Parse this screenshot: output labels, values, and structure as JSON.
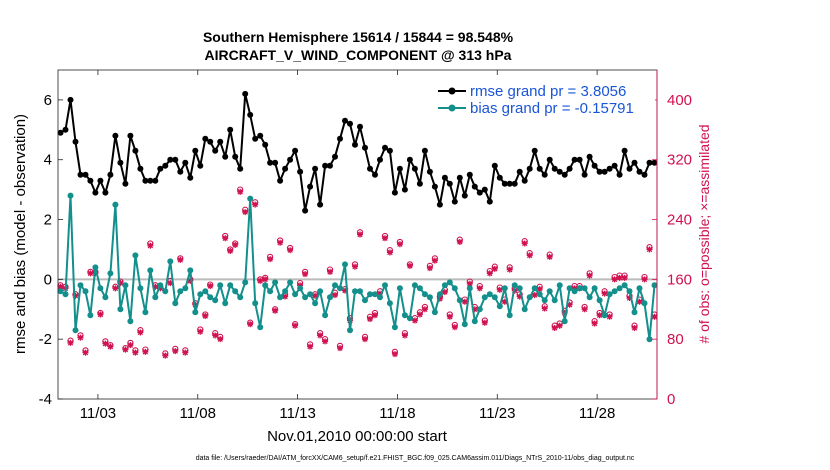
{
  "chart_data": {
    "type": "line",
    "title": "Southern Hemisphere 15614 / 15844 = 98.548%",
    "subtitle": "AIRCRAFT_V_WIND_COMPONENT @ 313 hPa",
    "xlabel": "Nov.01,2010 00:00:00 start",
    "ylabel_left": "rmse and bias (model - observation)",
    "ylabel_right": "# of obs: o=possible; ×=assimilated",
    "footer": "data file: /Users/raeder/DAI/ATM_forcXX/CAM6_setup/f.e21.FHIST_BGC.f09_025.CAM6assim.011/Diags_NTrS_2010-11/obs_diag_output.nc",
    "xlim": [
      1.0,
      31.0
    ],
    "x_ticks": [
      {
        "x": 3,
        "label": "11/03"
      },
      {
        "x": 8,
        "label": "11/08"
      },
      {
        "x": 13,
        "label": "11/13"
      },
      {
        "x": 18,
        "label": "11/18"
      },
      {
        "x": 23,
        "label": "11/23"
      },
      {
        "x": 28,
        "label": "11/28"
      }
    ],
    "ylim_left": [
      -4,
      7
    ],
    "y_ticks_left": [
      -4,
      -2,
      0,
      2,
      4,
      6
    ],
    "ylim_right": [
      0,
      440
    ],
    "y_ticks_right": [
      0,
      80,
      160,
      240,
      320,
      400
    ],
    "legend": {
      "position": "top-right",
      "entries": [
        "rmse grand pr = 3.8056",
        "bias grand pr = -0.15791"
      ]
    },
    "colors": {
      "rmse": "#000000",
      "bias": "#138f8c",
      "obs": "#d0124f",
      "zero_line": "#bbbbbb",
      "legend_text": "#1a55d6"
    },
    "x": [
      1.125,
      1.375,
      1.625,
      1.875,
      2.125,
      2.375,
      2.625,
      2.875,
      3.125,
      3.375,
      3.625,
      3.875,
      4.125,
      4.375,
      4.625,
      4.875,
      5.125,
      5.375,
      5.625,
      5.875,
      6.125,
      6.375,
      6.625,
      6.875,
      7.125,
      7.375,
      7.625,
      7.875,
      8.125,
      8.375,
      8.625,
      8.875,
      9.125,
      9.375,
      9.625,
      9.875,
      10.125,
      10.375,
      10.625,
      10.875,
      11.125,
      11.375,
      11.625,
      11.875,
      12.125,
      12.375,
      12.625,
      12.875,
      13.125,
      13.375,
      13.625,
      13.875,
      14.125,
      14.375,
      14.625,
      14.875,
      15.125,
      15.375,
      15.625,
      15.875,
      16.125,
      16.375,
      16.625,
      16.875,
      17.125,
      17.375,
      17.625,
      17.875,
      18.125,
      18.375,
      18.625,
      18.875,
      19.125,
      19.375,
      19.625,
      19.875,
      20.125,
      20.375,
      20.625,
      20.875,
      21.125,
      21.375,
      21.625,
      21.875,
      22.125,
      22.375,
      22.625,
      22.875,
      23.125,
      23.375,
      23.625,
      23.875,
      24.125,
      24.375,
      24.625,
      24.875,
      25.125,
      25.375,
      25.625,
      25.875,
      26.125,
      26.375,
      26.625,
      26.875,
      27.125,
      27.375,
      27.625,
      27.875,
      28.125,
      28.375,
      28.625,
      28.875,
      29.125,
      29.375,
      29.625,
      29.875,
      30.125,
      30.375,
      30.625,
      30.875
    ],
    "series": [
      {
        "name": "rmse",
        "values": [
          4.9,
          5.0,
          6.0,
          4.6,
          3.5,
          3.5,
          3.3,
          2.9,
          3.3,
          2.9,
          3.5,
          4.8,
          3.9,
          3.2,
          4.8,
          4.3,
          3.7,
          3.3,
          3.3,
          3.3,
          3.7,
          3.8,
          4.0,
          4.0,
          3.6,
          3.9,
          3.4,
          4.3,
          3.8,
          4.7,
          4.6,
          4.3,
          4.6,
          4.1,
          5.0,
          4.1,
          3.7,
          6.2,
          5.5,
          4.7,
          4.8,
          4.5,
          3.9,
          3.9,
          3.3,
          3.7,
          4.0,
          4.3,
          3.6,
          2.3,
          3.1,
          3.7,
          2.5,
          3.8,
          3.8,
          4.1,
          4.7,
          5.3,
          5.2,
          4.5,
          5.1,
          4.4,
          3.7,
          3.5,
          4.0,
          4.4,
          4.3,
          2.9,
          3.7,
          3.0,
          4.0,
          3.7,
          3.2,
          4.3,
          3.6,
          3.1,
          2.5,
          3.4,
          3.2,
          2.6,
          3.4,
          2.8,
          3.5,
          3.1,
          2.9,
          3.0,
          2.6,
          3.8,
          3.4,
          3.2,
          3.2,
          3.2,
          3.6,
          3.3,
          3.7,
          4.3,
          3.7,
          3.5,
          4.0,
          3.7,
          3.6,
          3.5,
          3.7,
          4.0,
          4.0,
          3.5,
          4.1,
          3.8,
          3.6,
          3.6,
          3.7,
          3.8,
          3.5,
          4.3,
          3.7,
          3.9,
          3.6,
          3.5,
          3.9,
          3.9
        ]
      },
      {
        "name": "bias",
        "values": [
          -0.4,
          -0.5,
          2.8,
          -1.7,
          -0.2,
          -0.4,
          -1.2,
          0.4,
          -0.3,
          -0.6,
          0.2,
          2.5,
          -1.0,
          -0.2,
          -1.4,
          0.8,
          -0.3,
          -1.1,
          0.3,
          -0.6,
          -0.2,
          -0.4,
          0.6,
          -0.8,
          -0.4,
          -0.3,
          0.3,
          -1.1,
          -0.5,
          -0.4,
          -0.6,
          -0.7,
          -0.2,
          -0.8,
          -0.2,
          -0.4,
          -0.6,
          -0.1,
          2.7,
          -0.8,
          -1.6,
          -0.2,
          -0.4,
          -0.1,
          -0.6,
          -0.4,
          -0.1,
          -0.5,
          -0.3,
          -0.6,
          -0.5,
          -0.8,
          -0.4,
          -1.2,
          -0.6,
          -0.2,
          -0.3,
          0.5,
          -1.7,
          -0.4,
          -0.4,
          -0.7,
          -0.5,
          -0.5,
          -0.6,
          -0.2,
          -0.8,
          -1.6,
          -0.3,
          -1.2,
          -1.3,
          -0.2,
          -0.3,
          -0.5,
          -0.6,
          -1.1,
          -0.5,
          -0.2,
          -0.1,
          -0.3,
          -0.7,
          -1.5,
          -0.3,
          -1.4,
          -1.0,
          -0.6,
          -0.5,
          -0.6,
          -0.9,
          -0.3,
          -1.2,
          -0.2,
          -0.3,
          -1.0,
          -0.6,
          -0.3,
          -0.5,
          -0.7,
          -0.4,
          -0.7,
          -0.2,
          -1.4,
          -0.3,
          -0.4,
          -0.3,
          -0.3,
          -0.6,
          -0.3,
          -0.7,
          -1.2,
          -0.5,
          -0.4,
          -0.3,
          -0.2,
          -0.4,
          -1.1,
          -0.3,
          -0.8,
          -2.0,
          -0.2
        ]
      },
      {
        "name": "obs_assimilated",
        "values": [
          150,
          148,
          75,
          138,
          82,
          62,
          168,
          168,
          113,
          74,
          70,
          148,
          155,
          66,
          72,
          62,
          89,
          63,
          205,
          150,
          148,
          58,
          155,
          64,
          186,
          62,
          158,
          126,
          90,
          111,
          151,
          85,
          80,
          215,
          198,
          206,
          277,
          250,
          100,
          260,
          158,
          160,
          187,
          118,
          209,
          137,
          199,
          98,
          152,
          167,
          70,
          138,
          85,
          77,
          170,
          139,
          68,
          145,
          105,
          177,
          220,
          80,
          107,
          112,
          141,
          215,
          196,
          60,
          207,
          85,
          178,
          105,
          113,
          120,
          175,
          185,
          134,
          143,
          110,
          96,
          210,
          130,
          154,
          120,
          148,
          102,
          168,
          174,
          146,
          130,
          173,
          145,
          137,
          208,
          192,
          139,
          147,
          121,
          190,
          95,
          98,
          115,
          126,
          148,
          148,
          120,
          165,
          101,
          112,
          141,
          110,
          160,
          162,
          162,
          135,
          95,
          130,
          160,
          200,
          110
        ]
      },
      {
        "name": "obs_possible",
        "values": [
          152,
          150,
          78,
          140,
          85,
          65,
          170,
          170,
          115,
          77,
          72,
          150,
          157,
          68,
          75,
          65,
          92,
          66,
          208,
          152,
          150,
          61,
          158,
          67,
          188,
          65,
          160,
          128,
          93,
          113,
          153,
          88,
          83,
          218,
          200,
          208,
          280,
          253,
          102,
          263,
          160,
          162,
          190,
          120,
          212,
          140,
          202,
          100,
          155,
          170,
          73,
          140,
          88,
          80,
          173,
          142,
          71,
          147,
          108,
          180,
          223,
          83,
          110,
          115,
          144,
          218,
          199,
          63,
          210,
          88,
          180,
          108,
          116,
          123,
          178,
          188,
          137,
          146,
          113,
          99,
          213,
          133,
          157,
          123,
          151,
          105,
          171,
          177,
          149,
          133,
          176,
          148,
          140,
          211,
          195,
          142,
          150,
          124,
          193,
          98,
          101,
          118,
          129,
          151,
          151,
          123,
          168,
          104,
          115,
          144,
          113,
          163,
          165,
          165,
          138,
          98,
          133,
          163,
          203,
          113
        ]
      }
    ]
  }
}
